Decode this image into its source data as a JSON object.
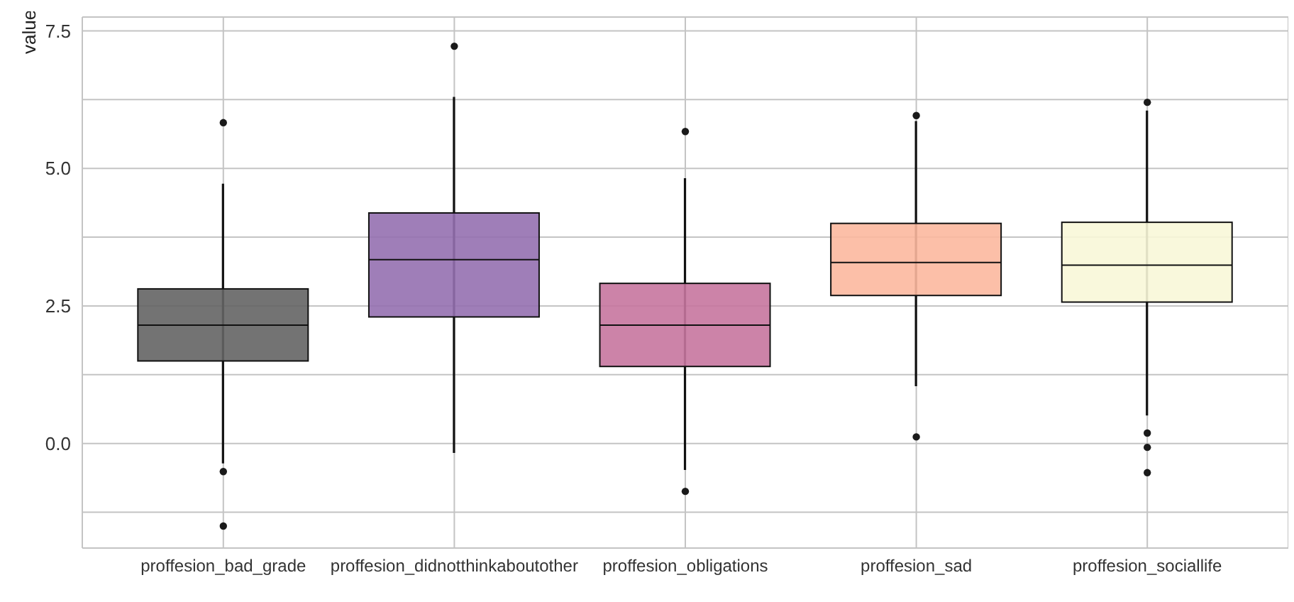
{
  "chart_data": {
    "type": "box",
    "ylabel": "value",
    "categories": [
      "proffesion_bad_grade",
      "proffesion_didnotthinkaboutother",
      "proffesion_obligations",
      "proffesion_sad",
      "proffesion_sociallife"
    ],
    "colors": [
      "#646464",
      "#9570b0",
      "#c7769e",
      "#fcb89f",
      "#f8f7d8"
    ],
    "boxes": [
      {
        "low": -0.36,
        "q1": 1.5,
        "median": 2.15,
        "q3": 2.81,
        "high": 4.72,
        "outliers": [
          5.83,
          -0.51,
          -1.5
        ]
      },
      {
        "low": -0.17,
        "q1": 2.3,
        "median": 3.34,
        "q3": 4.19,
        "high": 6.3,
        "outliers": [
          7.22
        ]
      },
      {
        "low": -0.48,
        "q1": 1.4,
        "median": 2.15,
        "q3": 2.91,
        "high": 4.82,
        "outliers": [
          5.67,
          -0.87
        ]
      },
      {
        "low": 1.04,
        "q1": 2.69,
        "median": 3.29,
        "q3": 4.0,
        "high": 5.86,
        "outliers": [
          5.96,
          0.12
        ]
      },
      {
        "low": 0.51,
        "q1": 2.57,
        "median": 3.24,
        "q3": 4.02,
        "high": 6.05,
        "outliers": [
          6.2,
          0.19,
          -0.07,
          -0.53
        ]
      }
    ],
    "ylim": [
      -1.9,
      7.75
    ],
    "yticks": [
      {
        "value": -1.25,
        "label": null
      },
      {
        "value": 0,
        "label": "0.0"
      },
      {
        "value": 1.25,
        "label": null
      },
      2.5,
      {
        "value": 3.75,
        "label": null
      },
      {
        "value": 5,
        "label": "5.0"
      },
      {
        "value": 6.25,
        "label": null
      },
      7.5
    ],
    "grid": true
  }
}
